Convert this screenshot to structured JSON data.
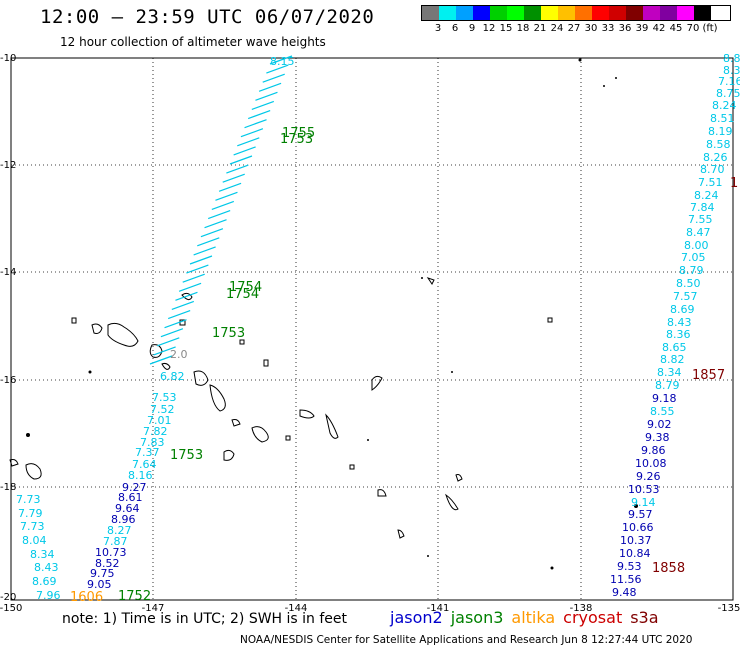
{
  "title": "12:00 – 23:59 UTC 06/07/2020",
  "subtitle": "12 hour collection of altimeter wave heights",
  "color_scale": {
    "colors": [
      "#777777",
      "#00f0f0",
      "#00a0ff",
      "#0000ff",
      "#00d000",
      "#00ff00",
      "#009000",
      "#ffff00",
      "#ffc000",
      "#ff7000",
      "#ff0000",
      "#d00000",
      "#800000",
      "#c000c0",
      "#8000a0",
      "#ff00ff",
      "#000000"
    ],
    "labels": [
      "3",
      "6",
      "9",
      "12",
      "15",
      "18",
      "21",
      "24",
      "27",
      "30",
      "33",
      "36",
      "39",
      "42",
      "45",
      "70",
      "(ft)"
    ]
  },
  "axes": {
    "lat_labels": [
      "-10",
      "-12",
      "-14",
      "-16",
      "-18",
      "-20"
    ],
    "lon_labels": [
      "-150",
      "-147",
      "-144",
      "-141",
      "-138",
      "-135"
    ]
  },
  "note": "note:  1) Time is in UTC;  2) SWH is in feet",
  "legend": [
    {
      "name": "jason2",
      "color": "#0000cc"
    },
    {
      "name": "jason3",
      "color": "#008000"
    },
    {
      "name": "altika",
      "color": "#ff9900"
    },
    {
      "name": "cryosat",
      "color": "#cc0000"
    },
    {
      "name": "s3a",
      "color": "#800000"
    }
  ],
  "footer": "NOAA/NESDIS Center for Satellite Applications and Research    Jun  8 12:27:44 UTC 2020",
  "track_labels": [
    {
      "text": "1755",
      "color": "#008000"
    },
    {
      "text": "1753",
      "color": "#008000"
    },
    {
      "text": "1754",
      "color": "#008000"
    },
    {
      "text": "1754",
      "color": "#008000"
    },
    {
      "text": "1753",
      "color": "#008000"
    },
    {
      "text": "1753",
      "color": "#008000"
    },
    {
      "text": "1752",
      "color": "#008000"
    },
    {
      "text": "1606",
      "color": "#ff9900"
    },
    {
      "text": "1857",
      "color": "#800000"
    },
    {
      "text": "1858",
      "color": "#800000"
    },
    {
      "text": "1",
      "color": "#800000"
    }
  ],
  "left_track_values": [
    "6.82",
    "7.53",
    "7.52",
    "7.01",
    "7.82",
    "7.83",
    "7.37",
    "7.64",
    "8.16",
    "9.27",
    "8.61",
    "9.64",
    "8.96",
    "8.27",
    "7.87",
    "10.73",
    "8.52",
    "9.75",
    "9.05",
    "7.73",
    "7.79",
    "7.73",
    "8.04",
    "8.34",
    "8.43",
    "8.69",
    "7.96"
  ],
  "left_track_colors": [
    "#00c8e8",
    "#00c8e8",
    "#00c8e8",
    "#00c8e8",
    "#00c8e8",
    "#00c8e8",
    "#00c8e8",
    "#00c8e8",
    "#00c8e8",
    "#0000b0",
    "#0000b0",
    "#0000b0",
    "#0000b0",
    "#00c8e8",
    "#00c8e8",
    "#0000b0",
    "#0000b0",
    "#0000b0",
    "#0000b0",
    "#00c8e8",
    "#00c8e8",
    "#00c8e8",
    "#00c8e8",
    "#00c8e8",
    "#00c8e8",
    "#00c8e8",
    "#00c8e8"
  ],
  "right_track_values": [
    "8.8",
    "8.3",
    "7.16",
    "8.75",
    "8.24",
    "8.51",
    "8.19",
    "8.58",
    "8.26",
    "8.70",
    "7.51",
    "8.24",
    "7.84",
    "7.55",
    "8.47",
    "8.00",
    "7.05",
    "8.79",
    "8.50",
    "7.57",
    "8.69",
    "8.43",
    "8.36",
    "8.65",
    "8.82",
    "8.34",
    "8.79",
    "9.18",
    "8.55",
    "9.02",
    "9.38",
    "9.86",
    "10.08",
    "9.26",
    "10.53",
    "9.14",
    "9.57",
    "10.66",
    "10.37",
    "10.84",
    "9.53",
    "11.56",
    "9.48"
  ],
  "right_track_colors": [
    "#00c8e8",
    "#00c8e8",
    "#00c8e8",
    "#00c8e8",
    "#00c8e8",
    "#00c8e8",
    "#00c8e8",
    "#00c8e8",
    "#00c8e8",
    "#00c8e8",
    "#00c8e8",
    "#00c8e8",
    "#00c8e8",
    "#00c8e8",
    "#00c8e8",
    "#00c8e8",
    "#00c8e8",
    "#00c8e8",
    "#00c8e8",
    "#00c8e8",
    "#00c8e8",
    "#00c8e8",
    "#00c8e8",
    "#00c8e8",
    "#00c8e8",
    "#00c8e8",
    "#00c8e8",
    "#0000b0",
    "#00c8e8",
    "#0000b0",
    "#0000b0",
    "#0000b0",
    "#0000b0",
    "#0000b0",
    "#0000b0",
    "#00c8e8",
    "#0000b0",
    "#0000b0",
    "#0000b0",
    "#0000b0",
    "#0000b0",
    "#0000b0",
    "#0000b0"
  ],
  "diagonal_track_top_value": "8.15",
  "diagonal_track_value": "2.0"
}
